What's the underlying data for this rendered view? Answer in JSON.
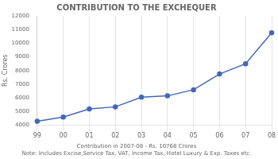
{
  "chart_data": {
    "type": "line",
    "title": "CONTRIBUTION TO THE EXCHEQUER",
    "ylabel": "Rs. Crores",
    "annotations": [
      "Contribution in 2007-08 - Rs. 10768 Crores",
      "Note: Includes Excise,Service Tax, VAT, Income Tax, Hotel Luxury & Exp. Taxes etc."
    ],
    "categories": [
      "99",
      "00",
      "01",
      "02",
      "03",
      "04",
      "05",
      "06",
      "07",
      "08"
    ],
    "values": [
      4300,
      4600,
      5200,
      5350,
      6050,
      6150,
      6600,
      7750,
      8500,
      10768
    ],
    "color": "#4466bb",
    "marker": "circle",
    "ylim": [
      4000,
      12000
    ],
    "yticks": [
      4000,
      5000,
      6000,
      7000,
      8000,
      9000,
      10000,
      11000,
      12000
    ],
    "grid": "x"
  }
}
